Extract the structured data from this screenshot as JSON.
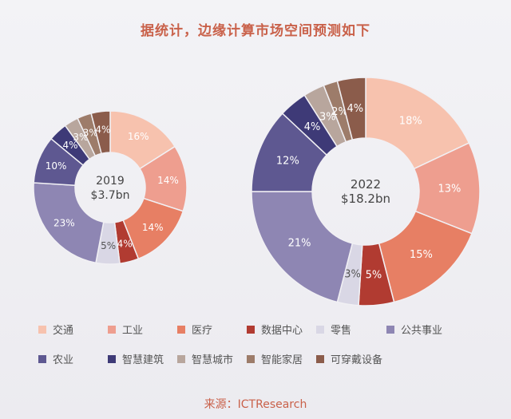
{
  "chart_data": {
    "type": "donut",
    "title": "据统计，边缘计算市场空间预测如下",
    "categories": [
      "交通",
      "工业",
      "医疗",
      "数据中心",
      "零售",
      "公共事业",
      "农业",
      "智慧建筑",
      "智慧城市",
      "智能家居",
      "可穿戴设备"
    ],
    "colors": [
      "#f7c2ae",
      "#ee9e8f",
      "#e77f64",
      "#b13b31",
      "#d9d7e5",
      "#8e86b3",
      "#5e5891",
      "#3e3a77",
      "#b8a69d",
      "#9d7c6a",
      "#8b5c4b"
    ],
    "charts": [
      {
        "year": "2019",
        "total": "$3.7bn",
        "values": [
          16,
          14,
          14,
          4,
          5,
          23,
          10,
          4,
          3,
          3,
          4
        ],
        "labels": [
          "16%",
          "14%",
          "14%",
          "4%",
          "5%",
          "23%",
          "10%",
          "4%",
          "3%",
          "3%",
          "4%"
        ]
      },
      {
        "year": "2022",
        "total": "$18.2bn",
        "values": [
          18,
          13,
          15,
          5,
          3,
          21,
          12,
          4,
          3,
          2,
          4
        ],
        "labels": [
          "18%",
          "13%",
          "15%",
          "5%",
          "3%",
          "21%",
          "12%",
          "4%",
          "3%",
          "2%",
          "4%"
        ]
      }
    ]
  },
  "source": "来源：ICTResearch"
}
